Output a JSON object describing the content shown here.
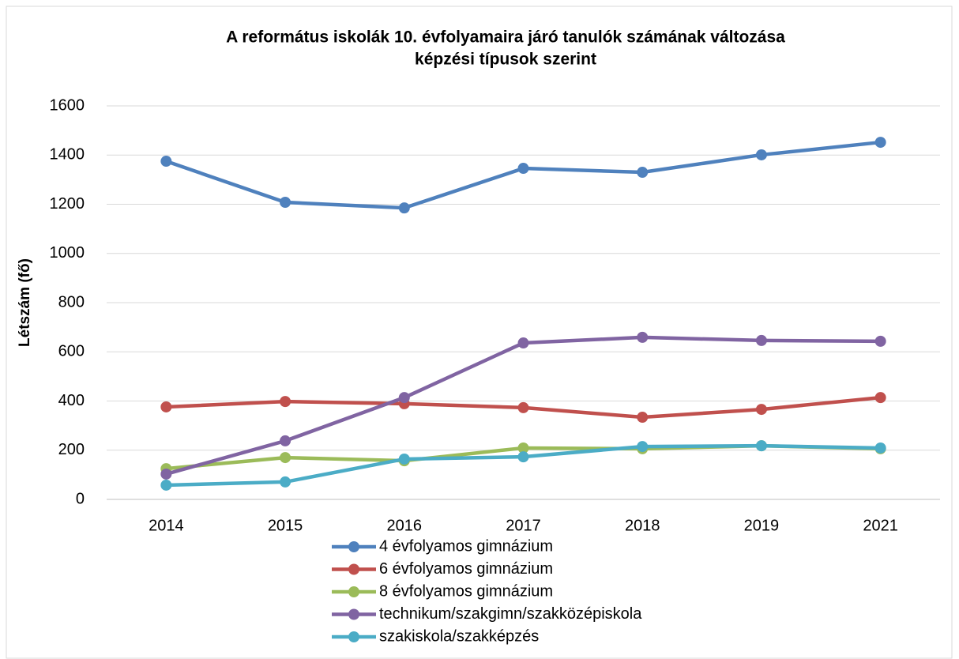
{
  "chart_data": {
    "type": "line",
    "title": [
      "A református iskolák 10. évfolyamaira járó tanulók számának változása",
      "képzési típusok szerint"
    ],
    "y_label": "Létszám (fő)",
    "categories": [
      "2014",
      "2015",
      "2016",
      "2017",
      "2018",
      "2019",
      "2021"
    ],
    "series": [
      {
        "name": "4 évfolyamos gimnázium",
        "color": "#4f81bd",
        "values": [
          1375,
          1208,
          1185,
          1346,
          1330,
          1401,
          1452
        ]
      },
      {
        "name": "6 évfolyamos gimnázium",
        "color": "#c0504d",
        "values": [
          376,
          398,
          389,
          373,
          334,
          366,
          414
        ]
      },
      {
        "name": "8 évfolyamos gimnázium",
        "color": "#9bbb59",
        "values": [
          125,
          170,
          157,
          209,
          206,
          218,
          206
        ]
      },
      {
        "name": "technikum/szakgimn/szakközépiskola",
        "color": "#8064a2",
        "values": [
          103,
          238,
          414,
          636,
          659,
          646,
          643
        ]
      },
      {
        "name": "szakiskola/szakképzés",
        "color": "#4bacc6",
        "values": [
          58,
          71,
          164,
          173,
          215,
          218,
          209
        ]
      }
    ],
    "ylim": [
      0,
      1600
    ],
    "yticks": [
      0,
      200,
      400,
      600,
      800,
      1000,
      1200,
      1400,
      1600
    ],
    "grid": true,
    "legend": "bottom"
  }
}
